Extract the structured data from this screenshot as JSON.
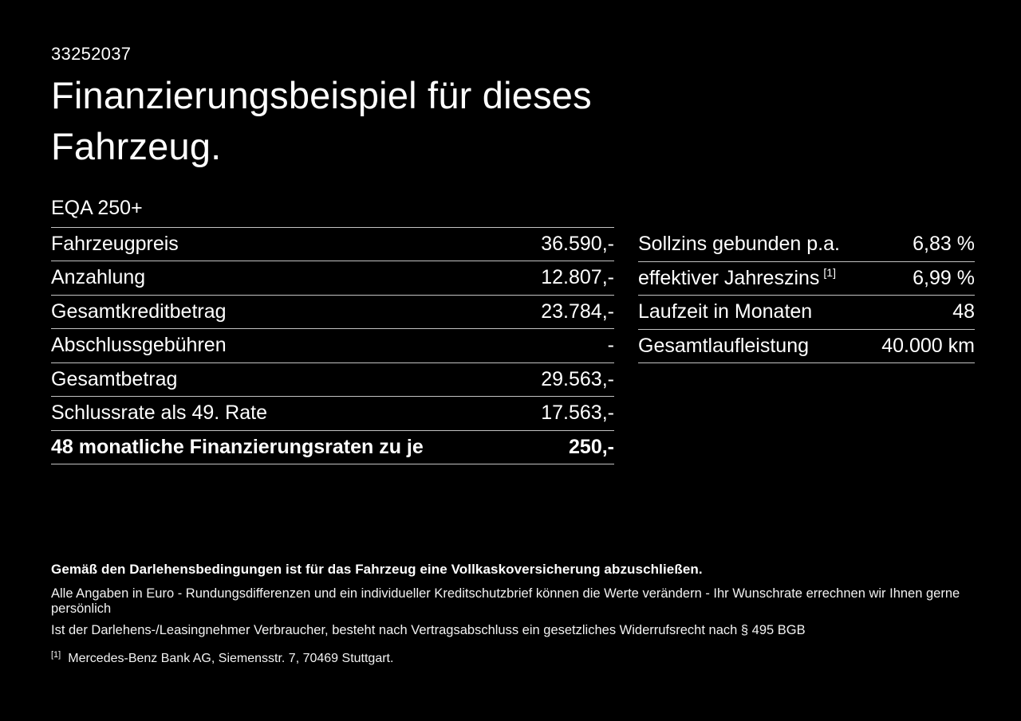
{
  "page": {
    "doc_id": "33252037",
    "title": "Finanzierungsbeispiel für dieses Fahrzeug.",
    "model": "EQA 250+"
  },
  "financing_table": {
    "rows": [
      {
        "label": "Fahrzeugpreis",
        "value": "36.590,-"
      },
      {
        "label": "Anzahlung",
        "value": "12.807,-"
      },
      {
        "label": "Gesamtkreditbetrag",
        "value": "23.784,-"
      },
      {
        "label": "Abschlussgebühren",
        "value": "-"
      },
      {
        "label": "Gesamtbetrag",
        "value": "29.563,-"
      },
      {
        "label": "Schlussrate als 49. Rate",
        "value": "17.563,-"
      },
      {
        "label": "48 monatliche Finanzierungsraten zu je",
        "value": "250,-",
        "emphasis": true
      }
    ]
  },
  "conditions_table": {
    "rows": [
      {
        "label": "Sollzins gebunden p.a.",
        "value": "6,83 %"
      },
      {
        "label": "effektiver Jahreszins",
        "sup": "[1]",
        "value": "6,99 %"
      },
      {
        "label": "Laufzeit in Monaten",
        "value": "48"
      },
      {
        "label": "Gesamtlaufleistung",
        "value": "40.000 km"
      }
    ]
  },
  "footnotes": {
    "insurance_note": "Gemäß den Darlehensbedingungen ist für das Fahrzeug eine Vollkaskoversicherung abzuschließen.",
    "disclaimer_line1": "Alle Angaben in Euro - Rundungsdifferenzen und ein individueller Kreditschutzbrief können die Werte verändern - Ihr Wunschrate errechnen wir Ihnen gerne persönlich",
    "disclaimer_line2": "Ist der Darlehens-/Leasingnehmer Verbraucher, besteht nach Vertragsabschluss ein gesetzliches Widerrufsrecht nach § 495 BGB",
    "ref_marker": "[1]",
    "ref_text": "Mercedes-Benz Bank AG, Siemensstr. 7, 70469 Stuttgart."
  },
  "colors": {
    "background": "#000000",
    "text": "#ffffff",
    "rule_line": "#c3c3c3"
  }
}
